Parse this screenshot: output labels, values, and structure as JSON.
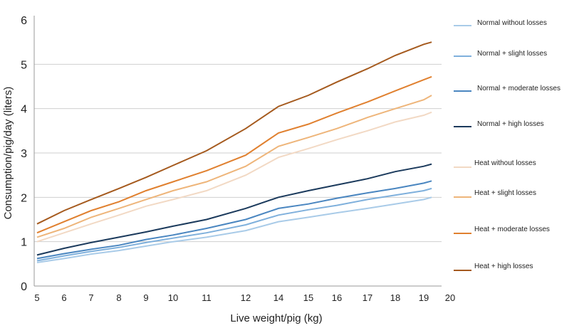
{
  "chart_data": {
    "type": "line",
    "title": "",
    "xlabel": "Live weight/pig (kg)",
    "ylabel": "Consumption/pig/day (liters)",
    "ylim": [
      0,
      6
    ],
    "yticks": [
      0,
      1,
      2,
      3,
      4,
      5,
      6
    ],
    "xticks": [
      5,
      6,
      7,
      8,
      9,
      10,
      11,
      12,
      14,
      15,
      16,
      17,
      18,
      19,
      20
    ],
    "grid": "horizontal",
    "legend_position": "right",
    "x": [
      5,
      6,
      7,
      8,
      9,
      10,
      11,
      12,
      14,
      15,
      16,
      17,
      18,
      19,
      19.3
    ],
    "series": [
      {
        "name": "Normal without losses",
        "color": "#a9cbe8",
        "values": [
          0.53,
          0.62,
          0.72,
          0.8,
          0.9,
          1.0,
          1.1,
          1.25,
          1.45,
          1.55,
          1.65,
          1.75,
          1.85,
          1.95,
          2.0
        ]
      },
      {
        "name": "Normal + slight losses",
        "color": "#7fb0dc",
        "values": [
          0.57,
          0.68,
          0.78,
          0.87,
          0.98,
          1.08,
          1.2,
          1.38,
          1.6,
          1.72,
          1.82,
          1.95,
          2.05,
          2.15,
          2.2
        ]
      },
      {
        "name": "Normal + moderate losses",
        "color": "#4a86c0",
        "values": [
          0.62,
          0.73,
          0.83,
          0.92,
          1.05,
          1.15,
          1.3,
          1.5,
          1.75,
          1.85,
          1.98,
          2.1,
          2.2,
          2.32,
          2.37
        ]
      },
      {
        "name": "Normal + high losses",
        "color": "#1b3a5c",
        "values": [
          0.7,
          0.85,
          0.98,
          1.1,
          1.22,
          1.35,
          1.5,
          1.75,
          2.0,
          2.15,
          2.28,
          2.42,
          2.58,
          2.7,
          2.75
        ]
      },
      {
        "name": "Heat without losses",
        "color": "#f2d9c4",
        "values": [
          1.0,
          1.2,
          1.4,
          1.6,
          1.8,
          1.95,
          2.15,
          2.5,
          2.9,
          3.1,
          3.3,
          3.5,
          3.7,
          3.85,
          3.92
        ]
      },
      {
        "name": "Heat + slight losses",
        "color": "#eeb57a",
        "values": [
          1.1,
          1.3,
          1.55,
          1.75,
          1.95,
          2.15,
          2.35,
          2.7,
          3.15,
          3.35,
          3.55,
          3.8,
          4.0,
          4.2,
          4.3
        ]
      },
      {
        "name": "Heat + moderate losses",
        "color": "#e0802f",
        "values": [
          1.2,
          1.45,
          1.7,
          1.9,
          2.15,
          2.35,
          2.6,
          2.95,
          3.45,
          3.65,
          3.9,
          4.15,
          4.4,
          4.65,
          4.72
        ]
      },
      {
        "name": "Heat + high losses",
        "color": "#a55a1e",
        "values": [
          1.4,
          1.7,
          1.95,
          2.2,
          2.45,
          2.72,
          3.05,
          3.55,
          4.05,
          4.3,
          4.6,
          4.9,
          5.2,
          5.45,
          5.5
        ]
      }
    ]
  }
}
